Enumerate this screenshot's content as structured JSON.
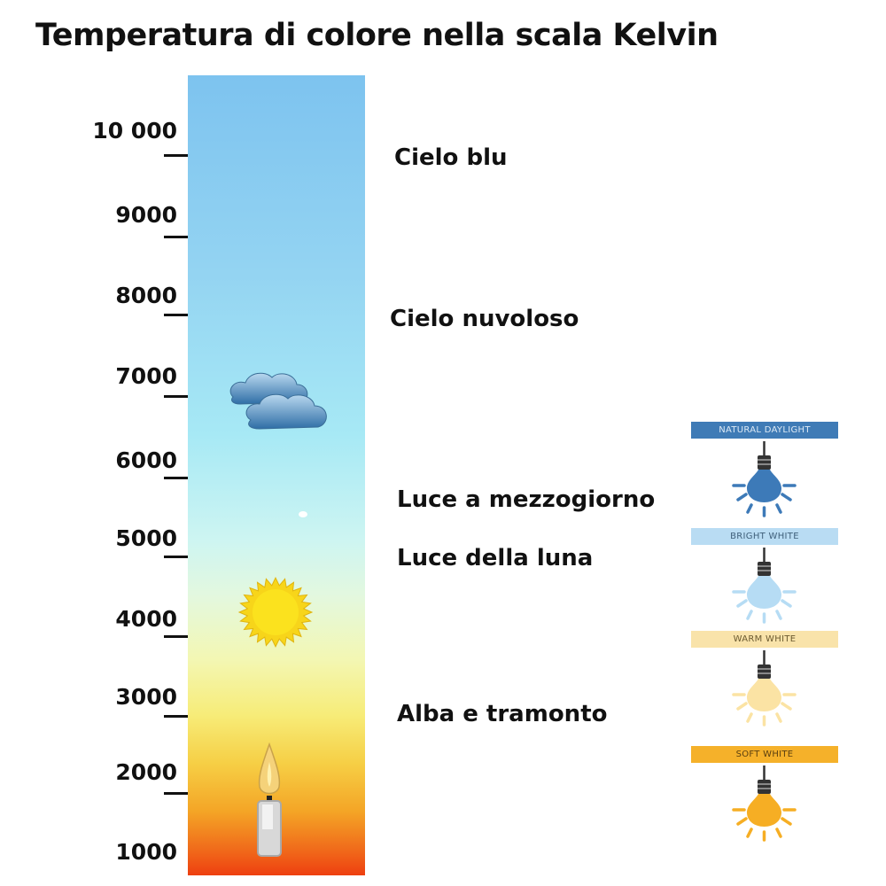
{
  "title": "Temperatura di colore nella scala Kelvin",
  "scale": {
    "ticks": [
      "10 000",
      "9000",
      "8000",
      "7000",
      "6000",
      "5000",
      "4000",
      "3000",
      "2000",
      "1000"
    ]
  },
  "categories": [
    {
      "label": "Cielo blu"
    },
    {
      "label": "Cielo nuvoloso"
    },
    {
      "label": "Luce a mezzogiorno"
    },
    {
      "label": "Luce della luna"
    },
    {
      "label": "Alba e tramonto"
    }
  ],
  "icons": [
    "cloud-icon",
    "sun-icon",
    "candle-icon"
  ],
  "bulbs": [
    {
      "label": "NATURAL DAYLIGHT",
      "banner_color": "#3f7bb6",
      "text_color": "#dce9f5",
      "bulb_color": "#3d7ab8"
    },
    {
      "label": "BRIGHT WHITE",
      "banner_color": "#b9dcf3",
      "text_color": "#3f5f7a",
      "bulb_color": "#b6dcf4"
    },
    {
      "label": "WARM WHITE",
      "banner_color": "#f9e3aa",
      "text_color": "#6b5a30",
      "bulb_color": "#fbe3a4"
    },
    {
      "label": "SOFT WHITE",
      "banner_color": "#f5b12a",
      "text_color": "#5a3f10",
      "bulb_color": "#f6ae24"
    }
  ]
}
